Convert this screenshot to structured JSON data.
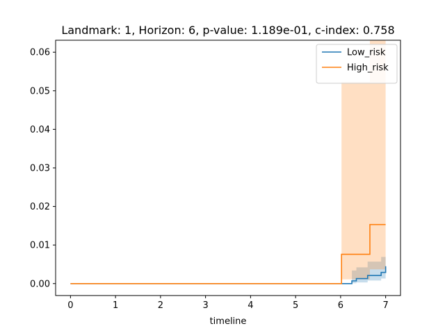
{
  "chart_data": {
    "type": "line",
    "title": "Landmark: 1, Horizon: 6, p-value: 1.189e-01, c-index: 0.758",
    "xlabel": "timeline",
    "ylabel": "",
    "xlim": [
      -0.33,
      7.33
    ],
    "ylim": [
      -0.0031,
      0.0631
    ],
    "x_ticks": [
      {
        "value": 0,
        "label": "0"
      },
      {
        "value": 1,
        "label": "1"
      },
      {
        "value": 2,
        "label": "2"
      },
      {
        "value": 3,
        "label": "3"
      },
      {
        "value": 4,
        "label": "4"
      },
      {
        "value": 5,
        "label": "5"
      },
      {
        "value": 6,
        "label": "6"
      },
      {
        "value": 7,
        "label": "7"
      }
    ],
    "y_ticks": [
      {
        "value": 0,
        "label": "0.00"
      },
      {
        "value": 0.01,
        "label": "0.01"
      },
      {
        "value": 0.02,
        "label": "0.02"
      },
      {
        "value": 0.03,
        "label": "0.03"
      },
      {
        "value": 0.04,
        "label": "0.04"
      },
      {
        "value": 0.05,
        "label": "0.05"
      },
      {
        "value": 0.06,
        "label": "0.06"
      }
    ],
    "grid": false,
    "legend_position": "top-right",
    "series": [
      {
        "name": "Low_risk",
        "color": "#1f77b4",
        "band_color": "#1f77b4",
        "step": "post",
        "x": [
          0,
          6.0,
          6.25,
          6.35,
          6.6,
          6.9,
          7.0
        ],
        "y": [
          0,
          0.0,
          0.0007,
          0.0013,
          0.0021,
          0.0029,
          0.0045
        ],
        "lower": [
          0,
          0.0,
          0.0001,
          0.0003,
          0.0008,
          0.0013,
          0.0018
        ],
        "upper": [
          0,
          0.0,
          0.0034,
          0.0042,
          0.0057,
          0.0069,
          0.0085
        ]
      },
      {
        "name": "High_risk",
        "color": "#ff7f0e",
        "band_color": "#ff7f0e",
        "step": "post",
        "x": [
          0,
          6.02,
          6.65,
          7.0
        ],
        "y": [
          0,
          0.0076,
          0.0153,
          0.0153
        ],
        "lower": [
          0,
          0.0011,
          0.0037,
          0.0037
        ],
        "upper": [
          0,
          0.0523,
          0.0632,
          0.0632
        ]
      }
    ]
  }
}
